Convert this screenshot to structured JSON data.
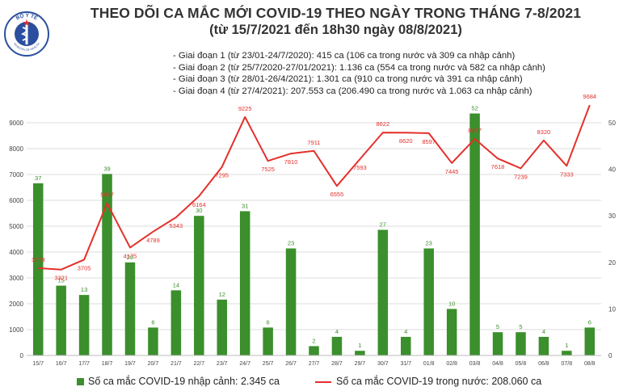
{
  "header": {
    "title": "THEO DÕI CA MẮC MỚI COVID-19 THEO NGÀY TRONG THÁNG 7-8/2021",
    "subtitle": "(từ 15/7/2021 đến 18h30 ngày 08/8/2021)",
    "logo_text": "BỘ Y TẾ",
    "logo_subtext": "MINISTRY OF HEALTH",
    "phases": [
      "- Giai đoạn 1 (từ 23/01-24/7/2020): 415 ca (106 ca trong nước và 309 ca nhập cảnh)",
      "- Giai đoạn 2 (từ 25/7/2020-27/01/2021): 1.136 ca (554 ca trong nước và 582 ca nhập cảnh)",
      "- Giai đoạn 3 (từ 28/01-26/4/2021): 1.301 ca (910 ca trong nước và 391 ca nhập cảnh)",
      "- Giai đoạn 4 (từ 27/4/2021): 207.553 ca (206.490 ca trong nước và 1.063 ca nhập cảnh)"
    ]
  },
  "legend": {
    "bar_label": "Số ca mắc COVID-19 nhập cảnh: 2.345 ca",
    "line_label": "Số ca mắc COVID-19 trong nước: 208.060 ca"
  },
  "colors": {
    "bar": "#3b8f2c",
    "line": "#e4302b",
    "grid": "#dcdcdc",
    "axis_text": "#444444",
    "logo": "#2b4f9e"
  },
  "chart_data": {
    "type": "bar",
    "categories": [
      "15/7",
      "16/7",
      "17/7",
      "18/7",
      "19/7",
      "20/7",
      "21/7",
      "22/7",
      "23/7",
      "24/7",
      "25/7",
      "26/7",
      "27/7",
      "28/7",
      "29/7",
      "30/7",
      "31/7",
      "01/8",
      "02/8",
      "03/8",
      "04/8",
      "05/8",
      "06/8",
      "07/8",
      "08/8"
    ],
    "series": [
      {
        "type": "bar",
        "axis": "right",
        "values": [
          37,
          15,
          13,
          39,
          20,
          6,
          14,
          30,
          12,
          31,
          6,
          23,
          2,
          4,
          1,
          27,
          4,
          23,
          10,
          52,
          5,
          5,
          4,
          1,
          6
        ]
      },
      {
        "type": "line",
        "axis": "left",
        "values": [
          3379,
          3321,
          3705,
          5887,
          4175,
          4789,
          5343,
          6164,
          7295,
          9225,
          7525,
          7810,
          7911,
          6555,
          7593,
          8622,
          8620,
          8597,
          7445,
          8377,
          7618,
          7239,
          8320,
          7333,
          9684
        ]
      }
    ],
    "left_axis": {
      "ylim": [
        0,
        9000
      ],
      "ticks": [
        0,
        1000,
        2000,
        3000,
        4000,
        5000,
        6000,
        7000,
        8000,
        9000
      ]
    },
    "right_axis": {
      "ylim": [
        0,
        50
      ],
      "ticks": [
        0,
        10,
        20,
        30,
        40,
        50
      ]
    },
    "grid": true,
    "legend_position": "bottom"
  }
}
